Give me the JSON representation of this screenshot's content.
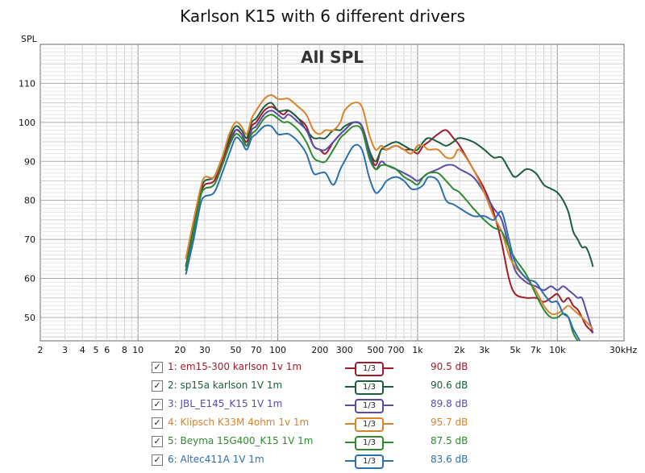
{
  "chart_data": {
    "type": "line",
    "title": "Karlson K15 with 6 different drivers",
    "subtitle": "All SPL",
    "ylabel": "SPL",
    "xlabel": "",
    "x_unit_label": "30kHz",
    "x_scale": "log",
    "xlim": [
      2,
      30000
    ],
    "ylim": [
      44,
      120
    ],
    "grid": true,
    "x_tick_labels": [
      "2",
      "3",
      "4",
      "5",
      "6",
      "8",
      "10",
      "20",
      "30",
      "50",
      "70",
      "100",
      "200",
      "300",
      "500",
      "700",
      "1k",
      "2k",
      "3k",
      "5k",
      "7k",
      "10k"
    ],
    "x_tick_values": [
      2,
      3,
      4,
      5,
      6,
      8,
      10,
      20,
      30,
      50,
      70,
      100,
      200,
      300,
      500,
      700,
      1000,
      2000,
      3000,
      5000,
      7000,
      10000
    ],
    "y_tick_labels": [
      "50",
      "60",
      "70",
      "80",
      "90",
      "100",
      "110"
    ],
    "y_tick_values": [
      50,
      60,
      70,
      80,
      90,
      100,
      110
    ],
    "series": [
      {
        "name": "1: em15-300 karlson 1v 1m",
        "color": "#a01c2c",
        "smoothing": "1/3",
        "level": "90.5 dB",
        "x": [
          22,
          25,
          28,
          30,
          35,
          40,
          45,
          50,
          55,
          60,
          65,
          70,
          80,
          90,
          100,
          110,
          120,
          140,
          160,
          180,
          200,
          220,
          250,
          280,
          300,
          350,
          400,
          450,
          500,
          550,
          600,
          700,
          800,
          900,
          1000,
          1100,
          1200,
          1400,
          1600,
          1800,
          2000,
          2500,
          3000,
          3500,
          4000,
          4500,
          5000,
          6000,
          7000,
          8000,
          9000,
          10000,
          11000,
          12000,
          13000,
          14000,
          15000,
          16000,
          17000,
          18000
        ],
        "y": [
          63,
          72,
          81,
          84,
          85,
          90,
          95,
          98,
          97,
          95,
          99,
          100,
          103,
          104,
          103,
          102,
          103,
          101,
          99,
          94,
          93,
          92,
          95,
          97,
          98,
          100,
          99,
          93,
          89,
          93,
          93,
          94,
          93,
          93,
          92,
          94,
          95,
          97,
          98,
          96,
          94,
          88,
          83,
          77,
          69,
          60,
          56,
          55,
          55,
          54,
          55,
          56,
          54,
          55,
          53,
          52,
          50,
          48,
          47,
          46
        ]
      },
      {
        "name": "2: sp15a karlson 1V 1m",
        "color": "#1a5e3c",
        "smoothing": "1/3",
        "level": "90.6 dB",
        "x": [
          22,
          25,
          28,
          30,
          35,
          40,
          45,
          50,
          55,
          60,
          65,
          70,
          80,
          90,
          100,
          110,
          120,
          140,
          160,
          180,
          200,
          220,
          250,
          280,
          300,
          350,
          400,
          450,
          500,
          550,
          600,
          700,
          800,
          900,
          1000,
          1100,
          1200,
          1400,
          1600,
          1800,
          2000,
          2500,
          3000,
          3500,
          4000,
          4500,
          5000,
          6000,
          7000,
          8000,
          9000,
          10000,
          11000,
          12000,
          13000,
          14000,
          15000,
          16000,
          17000,
          18000
        ],
        "y": [
          63,
          73,
          82,
          85,
          86,
          91,
          96,
          99,
          98,
          96,
          100,
          101,
          104,
          105,
          103,
          103,
          103,
          101,
          98,
          96,
          96,
          96,
          98,
          98,
          99,
          100,
          99,
          93,
          90,
          93,
          94,
          95,
          94,
          93,
          93,
          95,
          96,
          95,
          94,
          95,
          96,
          95,
          93,
          91,
          91,
          88,
          86,
          88,
          87,
          84,
          83,
          82,
          80,
          77,
          72,
          70,
          68,
          68,
          66,
          63
        ]
      },
      {
        "name": "3: JBL_E145_K15 1V 1m",
        "color": "#5b4aa8",
        "smoothing": "1/3",
        "level": "89.8 dB",
        "x": [
          22,
          25,
          28,
          30,
          35,
          40,
          45,
          50,
          55,
          60,
          65,
          70,
          80,
          90,
          100,
          110,
          120,
          140,
          160,
          180,
          200,
          220,
          250,
          280,
          300,
          350,
          400,
          450,
          500,
          550,
          600,
          700,
          800,
          900,
          1000,
          1100,
          1200,
          1400,
          1600,
          1800,
          2000,
          2500,
          3000,
          3500,
          4000,
          4500,
          5000,
          6000,
          7000,
          8000,
          9000,
          10000,
          11000,
          12000,
          13000,
          14000,
          15000,
          16000,
          17000,
          18000
        ],
        "y": [
          62,
          72,
          81,
          83,
          84,
          89,
          94,
          98,
          97,
          94,
          98,
          99,
          102,
          103,
          102,
          101,
          102,
          100,
          98,
          94,
          93,
          93,
          95,
          97,
          98,
          100,
          99,
          92,
          88,
          90,
          89,
          88,
          87,
          86,
          85,
          86,
          87,
          88,
          89,
          89,
          88,
          86,
          82,
          78,
          75,
          68,
          62,
          59,
          58,
          57,
          58,
          57,
          58,
          57,
          56,
          55,
          55,
          52,
          49,
          46
        ]
      },
      {
        "name": "4: Klipsch K33M 4ohm 1v 1m",
        "color": "#d9832a",
        "smoothing": "1/3",
        "level": "95.7 dB",
        "x": [
          22,
          25,
          28,
          30,
          35,
          40,
          45,
          50,
          55,
          60,
          65,
          70,
          80,
          90,
          100,
          110,
          120,
          140,
          160,
          180,
          200,
          220,
          250,
          280,
          300,
          350,
          400,
          450,
          500,
          550,
          600,
          700,
          800,
          900,
          1000,
          1100,
          1200,
          1400,
          1600,
          1800,
          2000,
          2500,
          3000,
          3500,
          4000,
          4500,
          5000,
          6000,
          7000,
          8000,
          9000,
          10000,
          11000,
          12000,
          13000,
          14000,
          15000,
          16000,
          17000,
          18000
        ],
        "y": [
          65,
          75,
          83,
          86,
          86,
          91,
          97,
          100,
          99,
          97,
          101,
          103,
          106,
          107,
          106,
          106,
          106,
          104,
          102,
          98,
          97,
          98,
          98,
          100,
          103,
          105,
          104,
          97,
          93,
          94,
          93,
          94,
          93,
          92,
          94,
          94,
          93,
          93,
          91,
          91,
          93,
          88,
          82,
          76,
          72,
          66,
          63,
          60,
          57,
          53,
          51,
          51,
          52,
          53,
          52,
          51,
          50,
          49,
          48,
          47
        ]
      },
      {
        "name": "5: Beyma 15G400_K15 1V 1m",
        "color": "#2e8a2e",
        "smoothing": "1/3",
        "level": "87.5 dB",
        "x": [
          22,
          25,
          28,
          30,
          35,
          40,
          45,
          50,
          55,
          60,
          65,
          70,
          80,
          90,
          100,
          110,
          120,
          140,
          160,
          180,
          200,
          220,
          250,
          280,
          300,
          350,
          400,
          450,
          500,
          550,
          600,
          700,
          800,
          900,
          1000,
          1100,
          1200,
          1400,
          1600,
          1800,
          2000,
          2500,
          3000,
          3500,
          4000,
          4500,
          5000,
          6000,
          7000,
          8000,
          9000,
          10000,
          11000,
          12000,
          13000,
          14000,
          15000
        ],
        "y": [
          62,
          72,
          81,
          83,
          84,
          89,
          94,
          97,
          96,
          94,
          97,
          98,
          101,
          102,
          101,
          100,
          100,
          98,
          95,
          91,
          90,
          90,
          93,
          96,
          97,
          99,
          98,
          91,
          88,
          89,
          89,
          88,
          86,
          85,
          84,
          86,
          87,
          87,
          85,
          83,
          82,
          78,
          75,
          73,
          72,
          68,
          65,
          61,
          56,
          52,
          50,
          50,
          51,
          50,
          46,
          44,
          42
        ]
      },
      {
        "name": "6: Altec411A 1V 1m",
        "color": "#2a6fb0",
        "smoothing": "1/3",
        "level": "83.6 dB",
        "x": [
          22,
          25,
          28,
          30,
          35,
          40,
          45,
          50,
          55,
          60,
          65,
          70,
          80,
          90,
          100,
          110,
          120,
          140,
          160,
          180,
          200,
          220,
          250,
          280,
          300,
          350,
          400,
          450,
          500,
          550,
          600,
          700,
          800,
          900,
          1000,
          1100,
          1200,
          1400,
          1600,
          1800,
          2000,
          2500,
          3000,
          3500,
          4000,
          4500,
          5000,
          6000,
          7000,
          8000,
          9000,
          10000,
          11000,
          12000,
          13000,
          14000,
          15000
        ],
        "y": [
          61,
          70,
          79,
          81,
          82,
          87,
          92,
          96,
          95,
          93,
          96,
          97,
          99,
          99,
          97,
          97,
          97,
          95,
          92,
          87,
          87,
          87,
          84,
          88,
          90,
          94,
          93,
          86,
          82,
          83,
          85,
          86,
          85,
          83,
          83,
          84,
          86,
          85,
          80,
          79,
          78,
          76,
          76,
          75,
          77,
          70,
          64,
          60,
          59,
          56,
          54,
          54,
          51,
          50,
          47,
          45,
          43
        ]
      }
    ]
  }
}
